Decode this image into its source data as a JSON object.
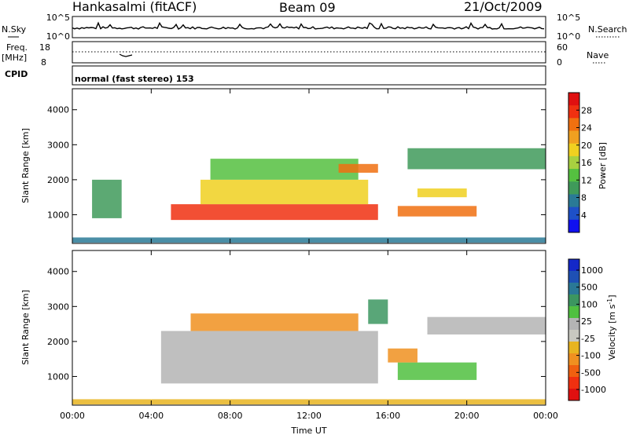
{
  "header": {
    "radar": "Hankasalmi (fitACF)",
    "beam": "Beam 09",
    "date": "21/Oct/2009"
  },
  "top_panels": {
    "nsky_label": "N.Sky",
    "nsky_top": "10^5",
    "nsky_bottom": "10^0",
    "nsearch_label": "N.Search",
    "nsearch_top": "10^5",
    "nsearch_bottom": "10^0",
    "freq_label": "Freq.",
    "freq_unit": "[MHz]",
    "freq_top": "18",
    "freq_bottom": "8",
    "nave_label": "Nave",
    "nave_top": "60",
    "nave_bottom": "0",
    "cpid_label": "CPID",
    "cpid_value": "normal (fast stereo) 153"
  },
  "colors": {
    "power": [
      "#1010f0",
      "#1e50c8",
      "#2a7a96",
      "#3f9a5a",
      "#55c040",
      "#a8d040",
      "#f0d020",
      "#f0a020",
      "#f07010",
      "#f03010",
      "#e01010"
    ],
    "velocity": [
      "#1428c8",
      "#1e50b4",
      "#2a7896",
      "#3c9660",
      "#50c040",
      "#b4b4b4",
      "#c8c8c0",
      "#e8b420",
      "#f09020",
      "#f06010",
      "#f03010",
      "#e01010"
    ]
  },
  "chart_data": [
    {
      "type": "heatmap",
      "name": "power",
      "ylabel": "Slant Range [km]",
      "xlim": [
        0,
        24
      ],
      "ylim": [
        180,
        4600
      ],
      "x_ticks": [
        "00:00",
        "04:00",
        "08:00",
        "12:00",
        "16:00",
        "20:00",
        "00:00"
      ],
      "y_ticks": [
        1000,
        2000,
        3000,
        4000
      ],
      "colorbar": {
        "label": "Power [dB]",
        "range": [
          0,
          32
        ],
        "ticks": [
          4,
          8,
          12,
          16,
          20,
          24,
          28
        ]
      },
      "regions": [
        {
          "x": [
            5.0,
            15.5
          ],
          "y": [
            850,
            1300
          ],
          "value": 28
        },
        {
          "x": [
            6.5,
            15.0
          ],
          "y": [
            1300,
            2000
          ],
          "value": 18
        },
        {
          "x": [
            7.0,
            14.5
          ],
          "y": [
            2000,
            2600
          ],
          "value": 14
        },
        {
          "x": [
            13.5,
            15.5
          ],
          "y": [
            2200,
            2450
          ],
          "value": 26
        },
        {
          "x": [
            16.5,
            20.5
          ],
          "y": [
            950,
            1250
          ],
          "value": 26
        },
        {
          "x": [
            17.5,
            20.0
          ],
          "y": [
            1500,
            1750
          ],
          "value": 20
        },
        {
          "x": [
            17.0,
            24.0
          ],
          "y": [
            2300,
            2900
          ],
          "value": 10
        },
        {
          "x": [
            1.0,
            2.5
          ],
          "y": [
            900,
            2000
          ],
          "value": 8
        },
        {
          "x": [
            0.0,
            24.0
          ],
          "y": [
            200,
            350
          ],
          "value": 6
        }
      ]
    },
    {
      "type": "heatmap",
      "name": "velocity",
      "ylabel": "Slant Range [km]",
      "xlabel": "Time UT",
      "xlim": [
        0,
        24
      ],
      "ylim": [
        180,
        4600
      ],
      "x_ticks": [
        "00:00",
        "04:00",
        "08:00",
        "12:00",
        "16:00",
        "20:00",
        "00:00"
      ],
      "y_ticks": [
        1000,
        2000,
        3000,
        4000
      ],
      "colorbar": {
        "label": "Velocity [m s^-1]",
        "ticks": [
          "1000",
          "500",
          "100",
          "25",
          "-25",
          "-100",
          "-500",
          "-1000"
        ]
      },
      "regions": [
        {
          "x": [
            4.5,
            15.5
          ],
          "y": [
            800,
            2300
          ],
          "value": 0
        },
        {
          "x": [
            6.0,
            14.5
          ],
          "y": [
            2300,
            2800
          ],
          "value": -150
        },
        {
          "x": [
            15.0,
            16.0
          ],
          "y": [
            2500,
            3200
          ],
          "value": 150
        },
        {
          "x": [
            16.5,
            20.5
          ],
          "y": [
            900,
            1400
          ],
          "value": 200
        },
        {
          "x": [
            16.0,
            17.5
          ],
          "y": [
            1400,
            1800
          ],
          "value": -200
        },
        {
          "x": [
            18.0,
            24.0
          ],
          "y": [
            2200,
            2700
          ],
          "value": 0
        },
        {
          "x": [
            0.0,
            24.0
          ],
          "y": [
            200,
            350
          ],
          "value": -50
        }
      ]
    }
  ]
}
